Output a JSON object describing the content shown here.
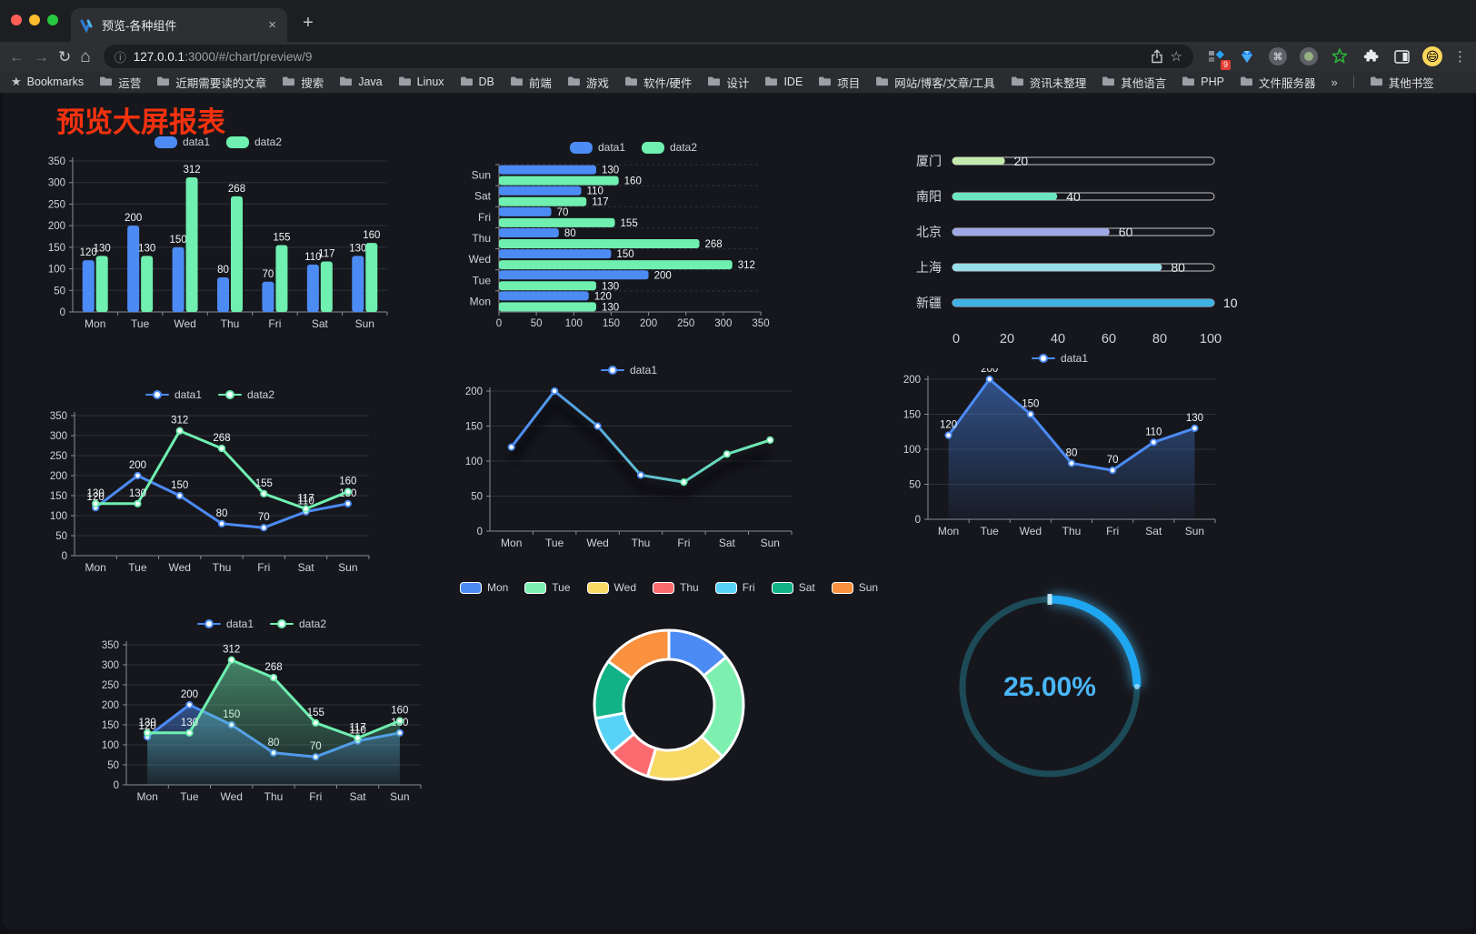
{
  "browser": {
    "tab_title": "预览-各种组件",
    "close_tab_label": "×",
    "new_tab_label": "+",
    "url_host": "127.0.0.1",
    "url_rest": ":3000/#/chart/preview/9",
    "extension_badge": "9",
    "bookmarks_star_label": "Bookmarks",
    "bookmark_folders": [
      "运营",
      "近期需要读的文章",
      "搜索",
      "Java",
      "Linux",
      "DB",
      "前端",
      "游戏",
      "软件/硬件",
      "设计",
      "IDE",
      "项目",
      "网站/博客/文章/工具",
      "资讯未整理",
      "其他语言",
      "PHP",
      "文件服务器"
    ],
    "bookmarks_overflow": "»",
    "other_bookmarks": "其他书签"
  },
  "page": {
    "title": "预览大屏报表",
    "title_color": "#f5320e"
  },
  "colors": {
    "series_blue": "#4c8bf4",
    "series_green": "#6fefb0",
    "axis": "#8a8e96",
    "grid": "#2e3138",
    "tick_label": "#cfd3da",
    "value_label": "#f2f4f6",
    "gauge_blue": "#1fa6f0",
    "gauge_track": "#1c4a57",
    "gauge_text": "#49b6f7"
  },
  "chart_data": [
    {
      "type": "bar",
      "categories": [
        "Mon",
        "Tue",
        "Wed",
        "Thu",
        "Fri",
        "Sat",
        "Sun"
      ],
      "series": [
        {
          "name": "data1",
          "color": "#4c8bf4",
          "values": [
            120,
            200,
            150,
            80,
            70,
            110,
            130
          ]
        },
        {
          "name": "data2",
          "color": "#6fefb0",
          "values": [
            130,
            130,
            312,
            268,
            155,
            117,
            160
          ]
        }
      ],
      "ylim": [
        0,
        350
      ],
      "ytick": 50,
      "labels": true,
      "legend": true
    },
    {
      "type": "hbar",
      "categories": [
        "Mon",
        "Tue",
        "Wed",
        "Thu",
        "Fri",
        "Sat",
        "Sun"
      ],
      "series": [
        {
          "name": "data1",
          "color": "#4c8bf4",
          "values": [
            120,
            200,
            150,
            80,
            70,
            110,
            130
          ]
        },
        {
          "name": "data2",
          "color": "#6fefb0",
          "values": [
            130,
            130,
            312,
            268,
            155,
            117,
            160
          ]
        }
      ],
      "xlim": [
        0,
        350
      ],
      "xtick": 50,
      "labels": true,
      "legend": true
    },
    {
      "type": "progress",
      "max": 100,
      "axis_ticks": [
        0,
        20,
        40,
        60,
        80,
        100
      ],
      "rows": [
        {
          "label": "厦门",
          "value": 20,
          "color": "#c4ebad"
        },
        {
          "label": "南阳",
          "value": 40,
          "color": "#6be6c1"
        },
        {
          "label": "北京",
          "value": 60,
          "color": "#a0a7e6"
        },
        {
          "label": "上海",
          "value": 80,
          "color": "#96dee8"
        },
        {
          "label": "新疆",
          "value": 100,
          "color": "#3fb1e3"
        }
      ]
    },
    {
      "type": "line",
      "categories": [
        "Mon",
        "Tue",
        "Wed",
        "Thu",
        "Fri",
        "Sat",
        "Sun"
      ],
      "series": [
        {
          "name": "data1",
          "color": "#4c8bf4",
          "values": [
            120,
            200,
            150,
            80,
            70,
            110,
            130
          ]
        },
        {
          "name": "data2",
          "color": "#6fefb0",
          "values": [
            130,
            130,
            312,
            268,
            155,
            117,
            160
          ]
        }
      ],
      "ylim": [
        0,
        350
      ],
      "ytick": 50,
      "labels": true,
      "legend": true
    },
    {
      "type": "line",
      "categories": [
        "Mon",
        "Tue",
        "Wed",
        "Thu",
        "Fri",
        "Sat",
        "Sun"
      ],
      "series": [
        {
          "name": "data1",
          "color": "#4c8bf4",
          "gradient": [
            "#4c8bf4",
            "#6fefb0"
          ],
          "values": [
            120,
            200,
            150,
            80,
            70,
            110,
            130
          ]
        }
      ],
      "ylim": [
        0,
        200
      ],
      "ytick": 50,
      "labels": false,
      "legend": true,
      "shadow": true
    },
    {
      "type": "line",
      "categories": [
        "Mon",
        "Tue",
        "Wed",
        "Thu",
        "Fri",
        "Sat",
        "Sun"
      ],
      "series": [
        {
          "name": "data1",
          "color": "#4c8bf4",
          "area": true,
          "values": [
            120,
            200,
            150,
            80,
            70,
            110,
            130
          ]
        }
      ],
      "ylim": [
        0,
        200
      ],
      "ytick": 50,
      "labels": true,
      "legend": true
    },
    {
      "type": "line",
      "categories": [
        "Mon",
        "Tue",
        "Wed",
        "Thu",
        "Fri",
        "Sat",
        "Sun"
      ],
      "series": [
        {
          "name": "data1",
          "color": "#4c8bf4",
          "area": true,
          "values": [
            120,
            200,
            150,
            80,
            70,
            110,
            130
          ]
        },
        {
          "name": "data2",
          "color": "#6fefb0",
          "area": true,
          "values": [
            130,
            130,
            312,
            268,
            155,
            117,
            160
          ]
        }
      ],
      "ylim": [
        0,
        350
      ],
      "ytick": 50,
      "labels": true,
      "legend": true
    },
    {
      "type": "donut",
      "categories": [
        "Mon",
        "Tue",
        "Wed",
        "Thu",
        "Fri",
        "Sat",
        "Sun"
      ],
      "values": [
        120,
        200,
        150,
        80,
        70,
        110,
        130
      ],
      "colors": [
        "#4c8bf4",
        "#7df0b0",
        "#f7d964",
        "#fa6b70",
        "#58d3f7",
        "#12b287",
        "#f9913f"
      ]
    },
    {
      "type": "gauge",
      "value": 25,
      "max": 100,
      "label": "25.00%",
      "color": "#1fa6f0",
      "track": "#1c4a57"
    }
  ]
}
